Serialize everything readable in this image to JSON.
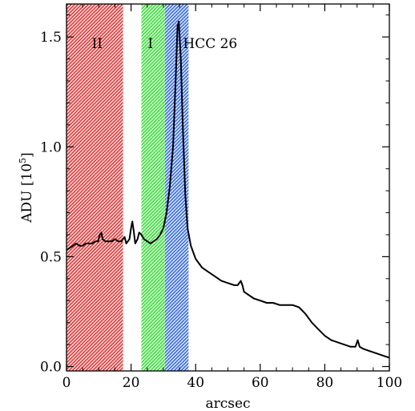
{
  "chart_data": {
    "type": "line",
    "xlabel": "arcsec",
    "ylabel_main": "ADU [10",
    "ylabel_sup": "5",
    "ylabel_close": "]",
    "xlim": [
      0,
      100
    ],
    "ylim": [
      -0.02,
      1.65
    ],
    "x_ticks": [
      0,
      20,
      40,
      60,
      80,
      100
    ],
    "x_tick_labels": [
      "0",
      "20",
      "40",
      "60",
      "80",
      "100"
    ],
    "y_ticks": [
      0.0,
      0.5,
      1.0,
      1.5
    ],
    "y_tick_labels": [
      "0.0",
      "0.5",
      "1.0",
      "1.5"
    ],
    "regions": [
      {
        "label": "II",
        "x_start": 0,
        "x_end": 17.5,
        "color": "#e83a3a"
      },
      {
        "label": "I",
        "x_start": 23.2,
        "x_end": 30.5,
        "color": "#3be03b"
      },
      {
        "label": "HCC 26",
        "x_start": 30.5,
        "x_end": 37.8,
        "color": "#3a6ee8"
      }
    ],
    "series": [
      {
        "color": "#000000",
        "points": [
          [
            0,
            0.53
          ],
          [
            1,
            0.54
          ],
          [
            2,
            0.55
          ],
          [
            3,
            0.56
          ],
          [
            4,
            0.55
          ],
          [
            5,
            0.55
          ],
          [
            6,
            0.56
          ],
          [
            7,
            0.56
          ],
          [
            8,
            0.56
          ],
          [
            9,
            0.57
          ],
          [
            9.8,
            0.57
          ],
          [
            10.3,
            0.6
          ],
          [
            10.8,
            0.61
          ],
          [
            11.2,
            0.58
          ],
          [
            12,
            0.57
          ],
          [
            13,
            0.57
          ],
          [
            14,
            0.57
          ],
          [
            15,
            0.58
          ],
          [
            16,
            0.57
          ],
          [
            17,
            0.57
          ],
          [
            17.5,
            0.58
          ],
          [
            18,
            0.59
          ],
          [
            18.5,
            0.56
          ],
          [
            19,
            0.57
          ],
          [
            19.5,
            0.58
          ],
          [
            20,
            0.63
          ],
          [
            20.4,
            0.66
          ],
          [
            20.8,
            0.62
          ],
          [
            21.3,
            0.56
          ],
          [
            22,
            0.58
          ],
          [
            22.5,
            0.61
          ],
          [
            23.2,
            0.6
          ],
          [
            24,
            0.58
          ],
          [
            25,
            0.57
          ],
          [
            26,
            0.56
          ],
          [
            27,
            0.57
          ],
          [
            28,
            0.58
          ],
          [
            29,
            0.6
          ],
          [
            30,
            0.63
          ],
          [
            31,
            0.7
          ],
          [
            32,
            0.82
          ],
          [
            33,
            1.0
          ],
          [
            33.8,
            1.3
          ],
          [
            34.4,
            1.55
          ],
          [
            34.8,
            1.57
          ],
          [
            35.4,
            1.4
          ],
          [
            36,
            1.1
          ],
          [
            36.8,
            0.78
          ],
          [
            37.5,
            0.63
          ],
          [
            38.5,
            0.55
          ],
          [
            40,
            0.49
          ],
          [
            42,
            0.45
          ],
          [
            44,
            0.43
          ],
          [
            46,
            0.41
          ],
          [
            48,
            0.39
          ],
          [
            50,
            0.38
          ],
          [
            52,
            0.37
          ],
          [
            53,
            0.37
          ],
          [
            54,
            0.39
          ],
          [
            54.5,
            0.37
          ],
          [
            55,
            0.34
          ],
          [
            56,
            0.33
          ],
          [
            58,
            0.31
          ],
          [
            60,
            0.3
          ],
          [
            62,
            0.29
          ],
          [
            64,
            0.29
          ],
          [
            66,
            0.28
          ],
          [
            68,
            0.28
          ],
          [
            70,
            0.28
          ],
          [
            72,
            0.27
          ],
          [
            74,
            0.24
          ],
          [
            76,
            0.2
          ],
          [
            78,
            0.17
          ],
          [
            80,
            0.14
          ],
          [
            82,
            0.12
          ],
          [
            84,
            0.11
          ],
          [
            86,
            0.1
          ],
          [
            88,
            0.09
          ],
          [
            89.5,
            0.09
          ],
          [
            90.2,
            0.12
          ],
          [
            90.8,
            0.09
          ],
          [
            92,
            0.08
          ],
          [
            94,
            0.07
          ],
          [
            96,
            0.06
          ],
          [
            98,
            0.05
          ],
          [
            100,
            0.04
          ]
        ]
      }
    ]
  }
}
